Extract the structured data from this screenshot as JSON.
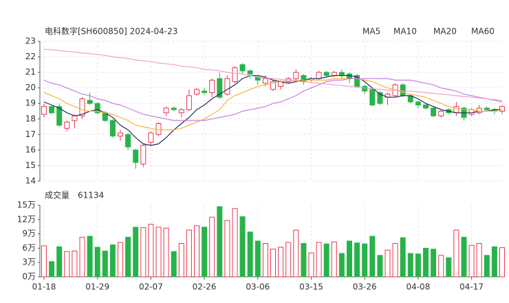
{
  "chart_data": [
    {
      "type": "candlestick",
      "title": "电科数字[SH600850] 2024-04-23",
      "up_color": "#e8364d",
      "down_color": "#28b34a",
      "ylim": [
        14,
        23
      ],
      "yticks": [
        14,
        15,
        16,
        17,
        18,
        19,
        20,
        21,
        22,
        23
      ],
      "grid": true,
      "legend": "top-right",
      "open": [
        18.3,
        18.8,
        18.8,
        17.4,
        17.9,
        18.2,
        19.2,
        19.0,
        18.4,
        17.9,
        16.9,
        17.0,
        16.0,
        15.1,
        16.5,
        17.0,
        18.4,
        18.7,
        18.4,
        18.6,
        19.6,
        19.8,
        19.7,
        20.6,
        19.6,
        20.4,
        21.5,
        21.1,
        20.7,
        20.3,
        19.9,
        20.1,
        20.4,
        20.6,
        20.8,
        20.5,
        20.6,
        21.0,
        20.8,
        21.0,
        20.9,
        20.8,
        20.1,
        19.9,
        19.7,
        19.4,
        19.5,
        20.2,
        19.5,
        19.1,
        18.9,
        18.7,
        18.2,
        18.6,
        18.4,
        18.7,
        18.3,
        18.4,
        18.7,
        18.6,
        18.5
      ],
      "high": [
        19.0,
        18.9,
        19.0,
        17.9,
        18.3,
        19.4,
        19.7,
        19.1,
        18.5,
        18.0,
        17.3,
        17.1,
        16.1,
        16.4,
        17.2,
        17.8,
        18.8,
        18.8,
        18.7,
        19.9,
        20.0,
        20.0,
        20.6,
        21.0,
        20.8,
        21.4,
        21.6,
        21.2,
        20.8,
        20.8,
        20.5,
        20.5,
        20.7,
        21.2,
        20.9,
        20.7,
        21.1,
        21.1,
        21.1,
        21.2,
        21.0,
        20.9,
        20.2,
        20.0,
        19.8,
        19.7,
        20.3,
        20.3,
        19.6,
        19.2,
        19.0,
        18.8,
        18.6,
        18.7,
        19.1,
        18.8,
        18.7,
        18.9,
        18.8,
        18.7,
        18.9
      ],
      "low": [
        18.1,
        18.3,
        17.5,
        17.2,
        17.4,
        18.0,
        18.9,
        18.3,
        17.8,
        16.8,
        16.6,
        16.0,
        14.8,
        14.9,
        16.3,
        16.9,
        18.2,
        18.5,
        18.1,
        18.5,
        19.5,
        19.6,
        19.4,
        19.3,
        19.5,
        20.3,
        20.9,
        20.6,
        20.2,
        20.1,
        19.8,
        19.9,
        20.3,
        20.5,
        20.2,
        20.4,
        20.5,
        20.7,
        20.7,
        20.6,
        20.3,
        20.0,
        19.6,
        18.8,
        18.9,
        18.9,
        19.4,
        19.4,
        19.0,
        18.7,
        18.6,
        18.1,
        18.1,
        18.3,
        18.2,
        17.9,
        18.2,
        18.3,
        18.5,
        18.3,
        18.3
      ],
      "close": [
        18.8,
        18.4,
        17.6,
        17.8,
        18.2,
        19.3,
        19.0,
        18.4,
        17.9,
        16.9,
        17.1,
        16.2,
        15.2,
        16.3,
        17.1,
        17.7,
        18.7,
        18.6,
        18.6,
        19.5,
        19.9,
        19.7,
        20.5,
        19.4,
        20.6,
        21.3,
        21.1,
        20.9,
        20.5,
        20.6,
        20.4,
        20.4,
        20.6,
        21.0,
        20.4,
        20.6,
        21.0,
        20.8,
        21.0,
        20.8,
        20.6,
        20.1,
        19.8,
        18.9,
        19.0,
        19.6,
        20.2,
        19.5,
        19.1,
        18.9,
        18.7,
        18.2,
        18.5,
        18.4,
        18.8,
        18.1,
        18.6,
        18.7,
        18.6,
        18.5,
        18.8
      ],
      "series": [
        {
          "name": "MA5",
          "color": "#1f2d5a",
          "values": [
            19.1,
            18.9,
            18.7,
            18.4,
            18.2,
            18.3,
            18.5,
            18.6,
            18.4,
            18.1,
            17.6,
            17.3,
            16.8,
            16.4,
            16.3,
            16.4,
            16.8,
            17.3,
            17.7,
            18.1,
            18.6,
            18.9,
            19.3,
            19.6,
            19.9,
            20.2,
            20.6,
            20.8,
            20.8,
            20.7,
            20.5,
            20.4,
            20.3,
            20.4,
            20.5,
            20.6,
            20.6,
            20.7,
            20.8,
            20.8,
            20.8,
            20.7,
            20.4,
            20.0,
            19.6,
            19.4,
            19.4,
            19.5,
            19.5,
            19.3,
            19.0,
            18.8,
            18.6,
            18.5,
            18.4,
            18.4,
            18.4,
            18.5,
            18.5,
            18.6,
            18.6
          ]
        },
        {
          "name": "MA10",
          "color": "#f5b342",
          "values": [
            19.7,
            19.5,
            19.3,
            19.0,
            18.8,
            18.6,
            18.5,
            18.5,
            18.4,
            18.3,
            18.1,
            17.9,
            17.6,
            17.5,
            17.4,
            17.3,
            17.3,
            17.3,
            17.4,
            17.6,
            17.8,
            18.0,
            18.3,
            18.6,
            19.2,
            19.5,
            19.7,
            19.9,
            20.1,
            20.2,
            20.3,
            20.4,
            20.5,
            20.5,
            20.5,
            20.5,
            20.5,
            20.5,
            20.6,
            20.6,
            20.6,
            20.6,
            20.5,
            20.4,
            20.2,
            20.0,
            19.9,
            19.7,
            19.6,
            19.5,
            19.4,
            19.2,
            19.0,
            18.8,
            18.7,
            18.6,
            18.6,
            18.5,
            18.5,
            18.5,
            18.6
          ]
        },
        {
          "name": "MA20",
          "color": "#c57fe0",
          "values": [
            20.5,
            20.3,
            20.2,
            20.0,
            19.8,
            19.6,
            19.5,
            19.3,
            19.2,
            19.0,
            18.9,
            18.7,
            18.5,
            18.3,
            18.2,
            18.1,
            18.0,
            17.9,
            17.9,
            17.9,
            17.9,
            17.9,
            18.0,
            18.1,
            18.2,
            18.3,
            18.5,
            18.6,
            18.7,
            18.8,
            19.0,
            19.1,
            19.3,
            19.5,
            19.8,
            20.0,
            20.2,
            20.4,
            20.5,
            20.5,
            20.6,
            20.6,
            20.6,
            20.6,
            20.6,
            20.6,
            20.5,
            20.5,
            20.5,
            20.4,
            20.3,
            20.2,
            20.0,
            19.9,
            19.8,
            19.6,
            19.5,
            19.4,
            19.3,
            19.2,
            19.1
          ]
        },
        {
          "name": "MA60",
          "color": "#f49ccb",
          "values": [
            22.5,
            22.45,
            22.4,
            22.35,
            22.3,
            22.25,
            22.2,
            22.15,
            22.1,
            22.0,
            21.95,
            21.9,
            21.8,
            21.75,
            21.7,
            21.6,
            21.55,
            21.5,
            21.4,
            21.35,
            21.3,
            21.2,
            21.15,
            21.1,
            21.0,
            20.95,
            20.9,
            20.8,
            20.7,
            20.65,
            20.6,
            20.55,
            20.5,
            20.45,
            20.4,
            20.35,
            20.3,
            20.25,
            20.2,
            20.15,
            20.1,
            20.05,
            20.0,
            19.95,
            19.9,
            19.85,
            19.85,
            19.8,
            19.8,
            19.75,
            19.7,
            19.65,
            19.6,
            19.55,
            19.5,
            19.45,
            19.4,
            19.35,
            19.3,
            19.25,
            19.2
          ]
        }
      ]
    },
    {
      "type": "bar",
      "title": "成交量",
      "latest": 61134,
      "categories": [
        "01-18",
        null,
        null,
        null,
        null,
        null,
        null,
        "01-29",
        null,
        null,
        null,
        null,
        null,
        null,
        "02-07",
        null,
        null,
        null,
        null,
        null,
        null,
        "02-26",
        null,
        null,
        null,
        null,
        null,
        null,
        "03-06",
        null,
        null,
        null,
        null,
        null,
        null,
        "03-15",
        null,
        null,
        null,
        null,
        null,
        null,
        "03-26",
        null,
        null,
        null,
        null,
        null,
        null,
        "04-08",
        null,
        null,
        null,
        null,
        null,
        null,
        "04-17",
        null,
        null,
        null,
        null
      ],
      "values": [
        6.5,
        3.2,
        6.3,
        5.3,
        5.4,
        8.3,
        8.5,
        6.2,
        5.4,
        6.7,
        7.2,
        8.3,
        10.4,
        10.3,
        11.0,
        10.4,
        10.2,
        5.3,
        7.0,
        9.8,
        10.7,
        10.4,
        12.5,
        14.7,
        11.8,
        14.3,
        12.6,
        9.4,
        7.5,
        7.0,
        5.8,
        6.2,
        7.2,
        9.8,
        7.0,
        5.0,
        7.2,
        6.9,
        7.3,
        4.9,
        7.5,
        7.1,
        6.9,
        8.5,
        4.5,
        5.6,
        7.0,
        8.2,
        4.9,
        4.8,
        6.0,
        5.8,
        4.5,
        4.0,
        9.8,
        8.3,
        6.6,
        7.0,
        4.5,
        6.3,
        6.1134
      ],
      "ylim": [
        0,
        15
      ],
      "yticks": [
        {
          "value": 0,
          "label": "0万"
        },
        {
          "value": 3,
          "label": "3万"
        },
        {
          "value": 6,
          "label": "6万"
        },
        {
          "value": 9,
          "label": "9万"
        },
        {
          "value": 12,
          "label": "12万"
        },
        {
          "value": 15,
          "label": "15万"
        }
      ]
    }
  ]
}
